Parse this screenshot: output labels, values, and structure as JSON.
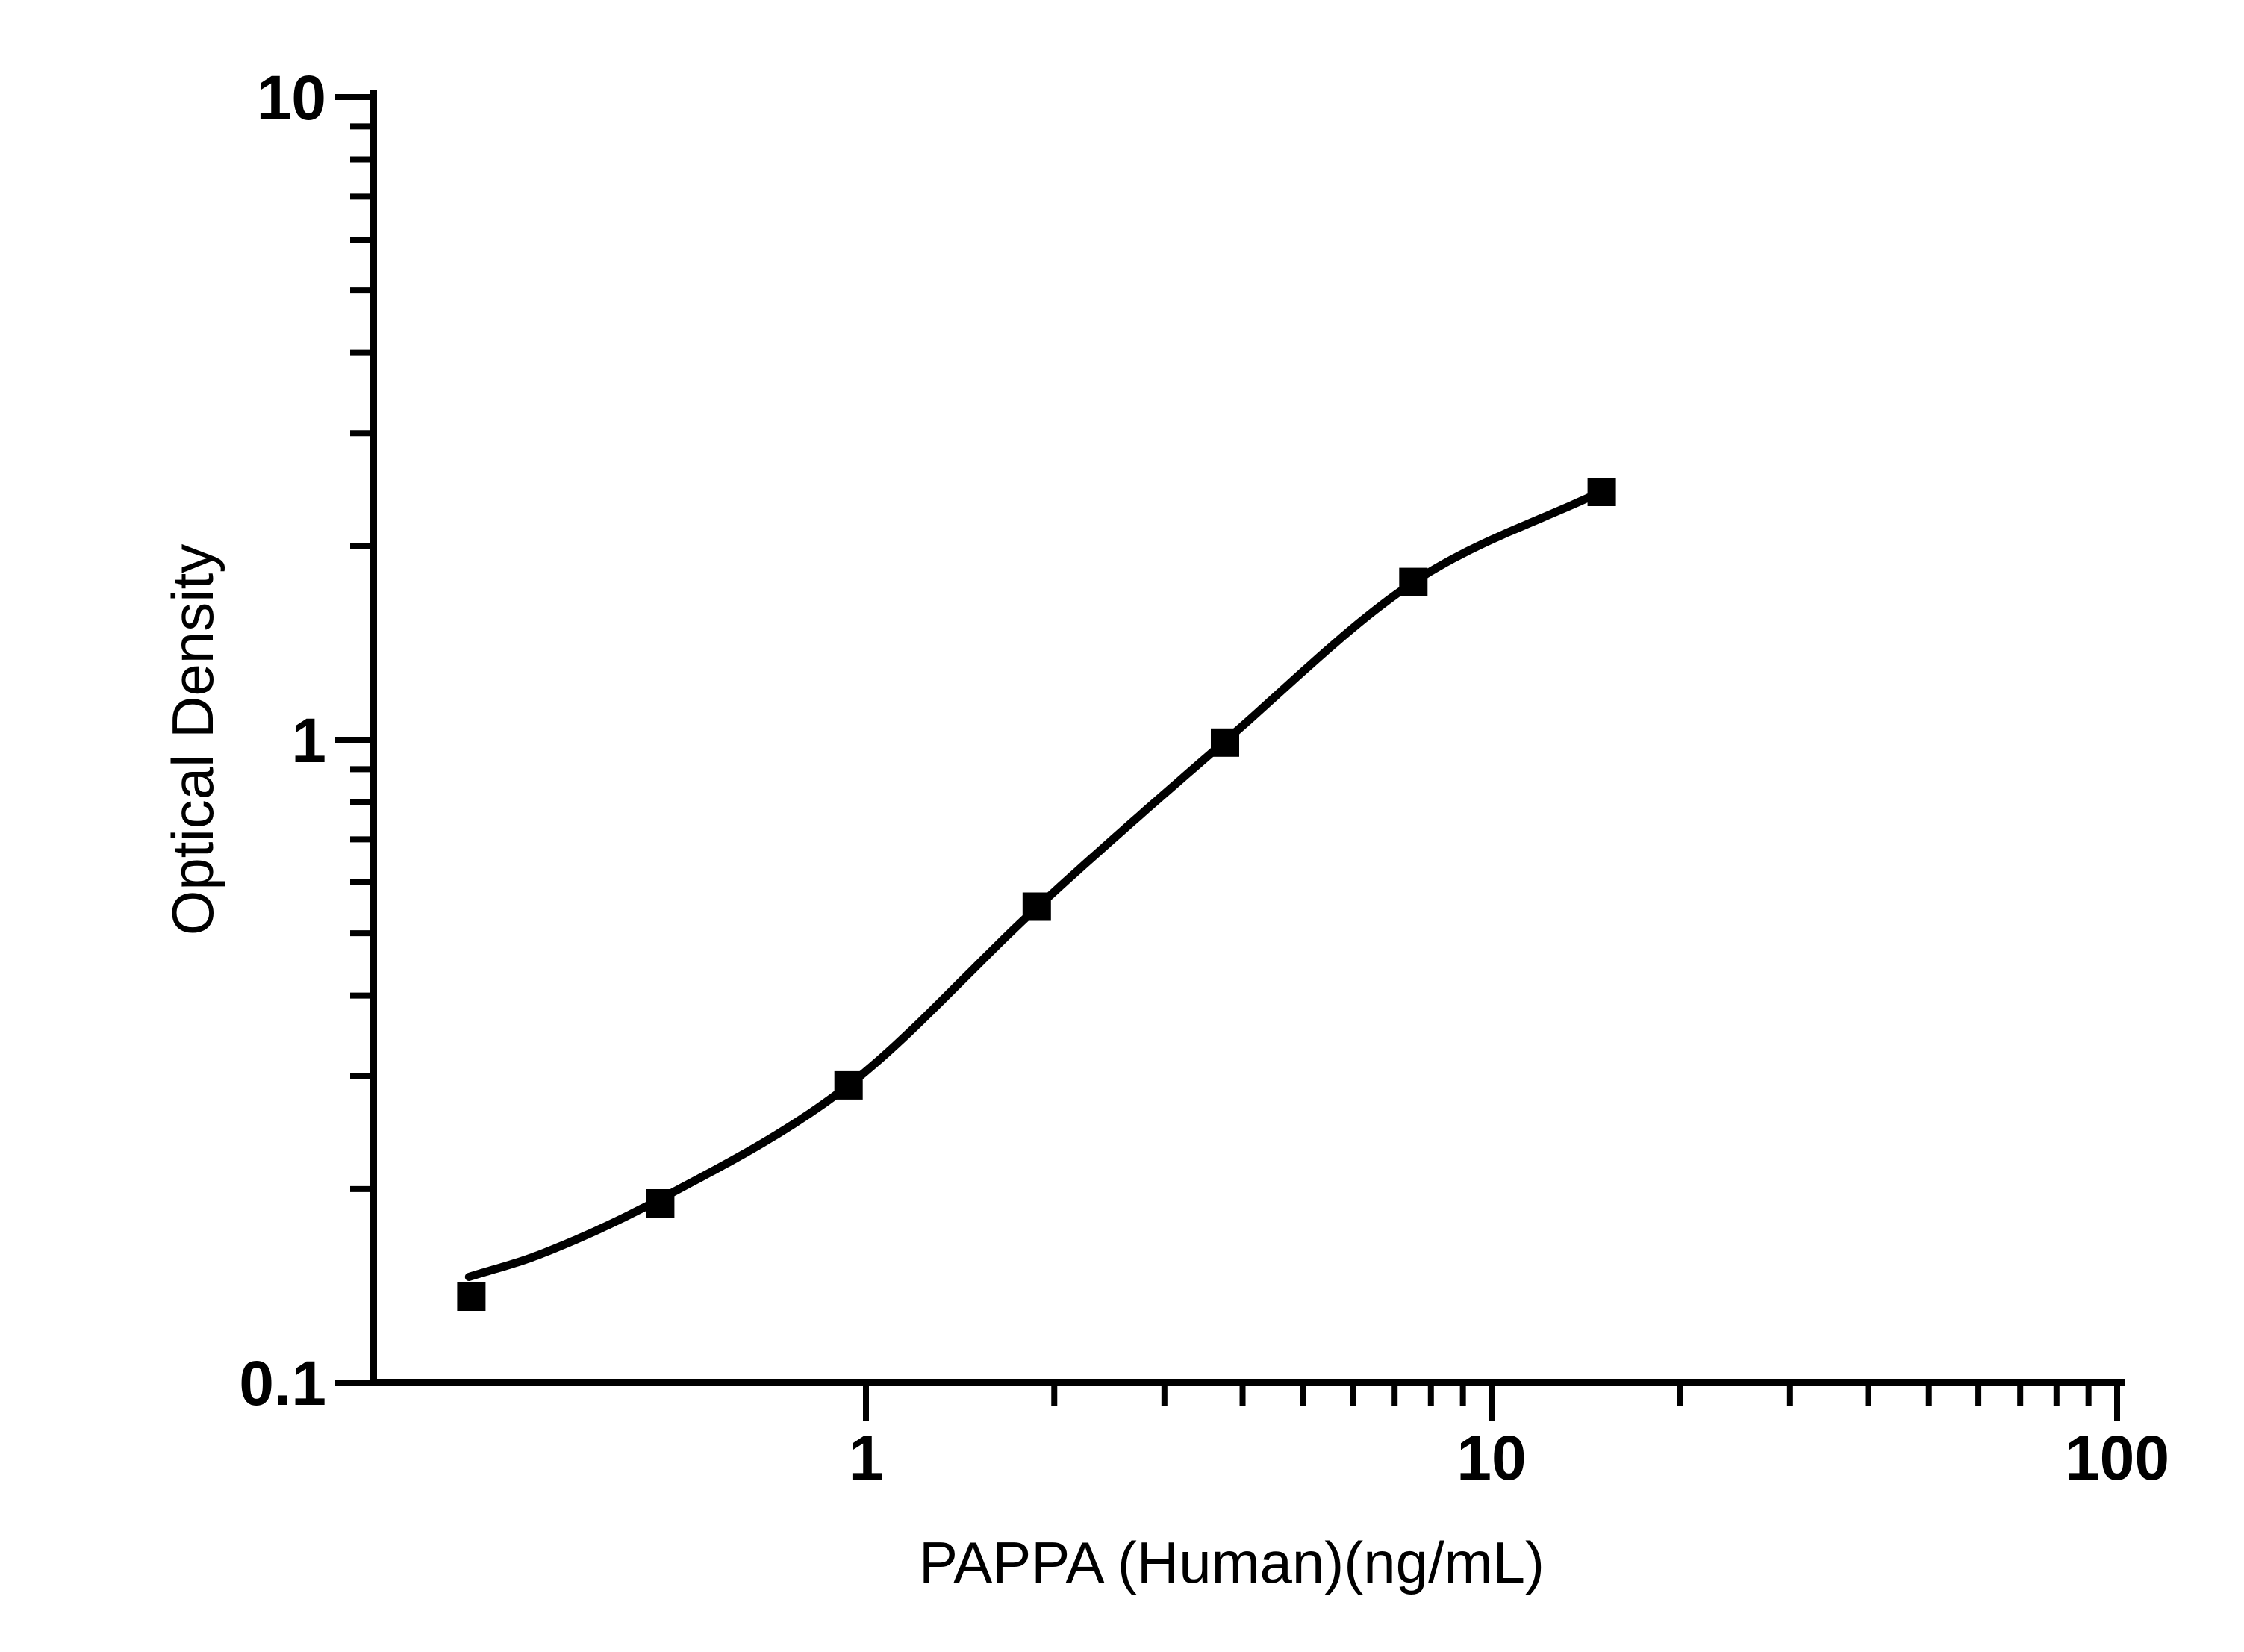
{
  "chart_data": {
    "type": "scatter",
    "subtype": "log-log standard curve with fitted line and square markers",
    "title": "",
    "xlabel": "PAPPA (Human)(ng/mL)",
    "ylabel": "Optical Density",
    "x_scale": "log",
    "y_scale": "log",
    "xlim": [
      0.163,
      100
    ],
    "ylim": [
      0.1,
      10
    ],
    "grid": "off",
    "legend": "none",
    "x_major_ticks": [
      {
        "value": 1,
        "label": "1"
      },
      {
        "value": 10,
        "label": "10"
      },
      {
        "value": 100,
        "label": "100"
      }
    ],
    "x_minor_ticks": [
      2,
      3,
      4,
      5,
      6,
      7,
      8,
      9,
      20,
      30,
      40,
      50,
      60,
      70,
      80,
      90
    ],
    "y_major_ticks": [
      {
        "value": 0.1,
        "label": "0.1"
      },
      {
        "value": 1,
        "label": "1"
      },
      {
        "value": 10,
        "label": "10"
      }
    ],
    "y_minor_ticks": [
      0.2,
      0.3,
      0.4,
      0.5,
      0.6,
      0.7,
      0.8,
      0.9,
      2,
      3,
      4,
      5,
      6,
      7,
      8,
      9
    ],
    "series": [
      {
        "name": "standard-curve-points",
        "marker": "filled-square",
        "x": [
          0.234,
          0.469,
          0.938,
          1.875,
          3.75,
          7.5,
          15
        ],
        "y": [
          0.136,
          0.19,
          0.29,
          0.55,
          0.99,
          1.76,
          2.43
        ]
      }
    ],
    "fit_curve_anchors": [
      [
        0.232,
        0.146
      ],
      [
        0.3,
        0.158
      ],
      [
        0.469,
        0.193
      ],
      [
        0.938,
        0.29
      ],
      [
        1.875,
        0.548
      ],
      [
        3.75,
        0.995
      ],
      [
        7.5,
        1.758
      ],
      [
        15,
        2.435
      ]
    ],
    "colors": {
      "background": "#ffffff",
      "axis": "#000000",
      "curve": "#000000",
      "marker": "#000000",
      "text": "#000000"
    }
  }
}
